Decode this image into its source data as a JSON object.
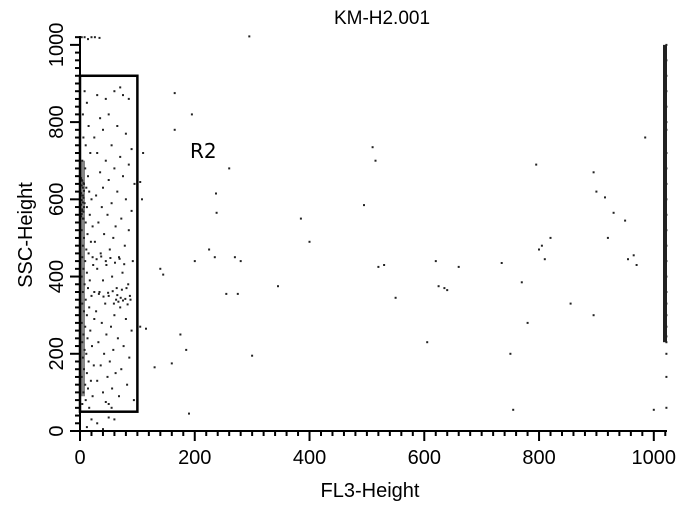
{
  "chart_data": {
    "type": "scatter",
    "title": "KM-H2.001",
    "xlabel": "FL3-Height",
    "ylabel": "SSC-Height",
    "xlim": [
      0,
      1023
    ],
    "ylim": [
      0,
      1023
    ],
    "x_ticks": [
      0,
      200,
      400,
      600,
      800,
      1000
    ],
    "y_ticks": [
      0,
      200,
      400,
      600,
      800,
      1000
    ],
    "grid": false,
    "point_color": "#222222",
    "gate": {
      "label": "R2",
      "x_range": [
        0,
        100
      ],
      "y_range": [
        50,
        920
      ]
    },
    "series": [
      {
        "points": [
          [
            3,
            1020
          ],
          [
            8,
            1020
          ],
          [
            14,
            1015
          ],
          [
            20,
            1020
          ],
          [
            26,
            1020
          ],
          [
            34,
            1018
          ],
          [
            295,
            1022
          ],
          [
            165,
            875
          ],
          [
            195,
            820
          ],
          [
            165,
            780
          ],
          [
            260,
            680
          ],
          [
            237,
            615
          ],
          [
            238,
            565
          ],
          [
            510,
            735
          ],
          [
            515,
            700
          ],
          [
            385,
            550
          ],
          [
            400,
            490
          ],
          [
            495,
            585
          ],
          [
            225,
            470
          ],
          [
            235,
            450
          ],
          [
            200,
            440
          ],
          [
            270,
            450
          ],
          [
            280,
            440
          ],
          [
            255,
            355
          ],
          [
            275,
            355
          ],
          [
            345,
            375
          ],
          [
            140,
            420
          ],
          [
            145,
            405
          ],
          [
            105,
            270
          ],
          [
            115,
            265
          ],
          [
            130,
            165
          ],
          [
            160,
            175
          ],
          [
            175,
            250
          ],
          [
            185,
            210
          ],
          [
            300,
            195
          ],
          [
            190,
            45
          ],
          [
            520,
            425
          ],
          [
            530,
            430
          ],
          [
            550,
            345
          ],
          [
            605,
            230
          ],
          [
            620,
            440
          ],
          [
            625,
            375
          ],
          [
            635,
            370
          ],
          [
            640,
            365
          ],
          [
            660,
            425
          ],
          [
            735,
            435
          ],
          [
            750,
            200
          ],
          [
            755,
            55
          ],
          [
            770,
            385
          ],
          [
            780,
            280
          ],
          [
            795,
            690
          ],
          [
            800,
            470
          ],
          [
            805,
            480
          ],
          [
            810,
            445
          ],
          [
            820,
            500
          ],
          [
            855,
            330
          ],
          [
            895,
            300
          ],
          [
            895,
            670
          ],
          [
            900,
            620
          ],
          [
            915,
            605
          ],
          [
            920,
            500
          ],
          [
            930,
            565
          ],
          [
            950,
            545
          ],
          [
            955,
            445
          ],
          [
            965,
            455
          ],
          [
            970,
            430
          ],
          [
            985,
            760
          ],
          [
            1000,
            55
          ],
          [
            110,
            720
          ],
          [
            105,
            645
          ],
          [
            108,
            600
          ],
          [
            12,
            10
          ],
          [
            20,
            30
          ],
          [
            30,
            20
          ],
          [
            40,
            5
          ],
          [
            50,
            35
          ],
          [
            60,
            30
          ],
          [
            45,
            75
          ],
          [
            55,
            60
          ],
          [
            4,
            920
          ],
          [
            8,
            880
          ],
          [
            12,
            850
          ],
          [
            5,
            820
          ],
          [
            15,
            790
          ],
          [
            6,
            760
          ],
          [
            10,
            740
          ],
          [
            18,
            720
          ],
          [
            4,
            700
          ],
          [
            9,
            680
          ],
          [
            14,
            660
          ],
          [
            3,
            650
          ],
          [
            7,
            640
          ],
          [
            11,
            630
          ],
          [
            16,
            620
          ],
          [
            5,
            610
          ],
          [
            20,
            600
          ],
          [
            8,
            590
          ],
          [
            12,
            580
          ],
          [
            4,
            570
          ],
          [
            17,
            560
          ],
          [
            6,
            550
          ],
          [
            10,
            540
          ],
          [
            22,
            530
          ],
          [
            3,
            520
          ],
          [
            13,
            510
          ],
          [
            7,
            500
          ],
          [
            19,
            490
          ],
          [
            5,
            480
          ],
          [
            11,
            470
          ],
          [
            15,
            460
          ],
          [
            4,
            450
          ],
          [
            9,
            440
          ],
          [
            23,
            430
          ],
          [
            6,
            420
          ],
          [
            12,
            410
          ],
          [
            3,
            400
          ],
          [
            17,
            390
          ],
          [
            8,
            380
          ],
          [
            14,
            370
          ],
          [
            5,
            360
          ],
          [
            20,
            350
          ],
          [
            10,
            340
          ],
          [
            4,
            330
          ],
          [
            16,
            320
          ],
          [
            7,
            310
          ],
          [
            12,
            300
          ],
          [
            25,
            290
          ],
          [
            3,
            280
          ],
          [
            9,
            270
          ],
          [
            18,
            260
          ],
          [
            6,
            250
          ],
          [
            13,
            240
          ],
          [
            4,
            230
          ],
          [
            21,
            220
          ],
          [
            8,
            210
          ],
          [
            11,
            200
          ],
          [
            5,
            190
          ],
          [
            15,
            180
          ],
          [
            24,
            170
          ],
          [
            7,
            160
          ],
          [
            12,
            150
          ],
          [
            3,
            140
          ],
          [
            19,
            130
          ],
          [
            9,
            120
          ],
          [
            14,
            110
          ],
          [
            6,
            100
          ],
          [
            22,
            90
          ],
          [
            10,
            80
          ],
          [
            4,
            70
          ],
          [
            16,
            60
          ],
          [
            2,
            655
          ],
          [
            4,
            648
          ],
          [
            6,
            642
          ],
          [
            3,
            636
          ],
          [
            5,
            630
          ],
          [
            7,
            622
          ],
          [
            2,
            616
          ],
          [
            4,
            610
          ],
          [
            6,
            604
          ],
          [
            3,
            598
          ],
          [
            5,
            592
          ],
          [
            2,
            586
          ],
          [
            7,
            580
          ],
          [
            4,
            574
          ],
          [
            6,
            568
          ],
          [
            3,
            562
          ],
          [
            2,
            556
          ],
          [
            5,
            550
          ],
          [
            30,
            870
          ],
          [
            60,
            880
          ],
          [
            70,
            890
          ],
          [
            75,
            870
          ],
          [
            45,
            860
          ],
          [
            85,
            860
          ],
          [
            50,
            820
          ],
          [
            35,
            810
          ],
          [
            40,
            780
          ],
          [
            65,
            790
          ],
          [
            80,
            770
          ],
          [
            25,
            760
          ],
          [
            55,
            740
          ],
          [
            90,
            730
          ],
          [
            30,
            720
          ],
          [
            70,
            710
          ],
          [
            45,
            700
          ],
          [
            85,
            690
          ],
          [
            60,
            680
          ],
          [
            35,
            670
          ],
          [
            75,
            660
          ],
          [
            50,
            650
          ],
          [
            95,
            640
          ],
          [
            40,
            630
          ],
          [
            65,
            620
          ],
          [
            28,
            610
          ],
          [
            80,
            600
          ],
          [
            55,
            590
          ],
          [
            38,
            580
          ],
          [
            90,
            570
          ],
          [
            48,
            560
          ],
          [
            72,
            550
          ],
          [
            32,
            540
          ],
          [
            62,
            530
          ],
          [
            85,
            520
          ],
          [
            42,
            510
          ],
          [
            58,
            500
          ],
          [
            26,
            490
          ],
          [
            78,
            480
          ],
          [
            52,
            470
          ],
          [
            36,
            460
          ],
          [
            68,
            450
          ],
          [
            92,
            440
          ],
          [
            46,
            430
          ],
          [
            30,
            420
          ],
          [
            74,
            410
          ],
          [
            56,
            400
          ],
          [
            40,
            390
          ],
          [
            84,
            380
          ],
          [
            64,
            370
          ],
          [
            34,
            360
          ],
          [
            50,
            350
          ],
          [
            88,
            340
          ],
          [
            44,
            330
          ],
          [
            70,
            320
          ],
          [
            28,
            310
          ],
          [
            60,
            300
          ],
          [
            80,
            290
          ],
          [
            38,
            280
          ],
          [
            54,
            270
          ],
          [
            90,
            260
          ],
          [
            46,
            250
          ],
          [
            66,
            240
          ],
          [
            32,
            230
          ],
          [
            76,
            220
          ],
          [
            58,
            210
          ],
          [
            42,
            200
          ],
          [
            86,
            190
          ],
          [
            52,
            180
          ],
          [
            36,
            170
          ],
          [
            72,
            160
          ],
          [
            62,
            150
          ],
          [
            48,
            140
          ],
          [
            30,
            130
          ],
          [
            82,
            120
          ],
          [
            56,
            110
          ],
          [
            40,
            100
          ],
          [
            68,
            90
          ],
          [
            94,
            80
          ],
          [
            50,
            70
          ],
          [
            63,
            340
          ],
          [
            67,
            335
          ],
          [
            71,
            345
          ],
          [
            59,
            330
          ],
          [
            75,
            338
          ],
          [
            79,
            342
          ],
          [
            83,
            328
          ],
          [
            87,
            350
          ],
          [
            25,
            360
          ],
          [
            33,
            355
          ],
          [
            41,
            348
          ],
          [
            49,
            358
          ],
          [
            57,
            362
          ],
          [
            65,
            352
          ],
          [
            73,
            366
          ],
          [
            81,
            370
          ],
          [
            22,
            450
          ],
          [
            29,
            445
          ],
          [
            37,
            452
          ],
          [
            45,
            440
          ],
          [
            53,
            448
          ],
          [
            61,
            436
          ],
          [
            69,
            446
          ],
          [
            77,
            432
          ],
          [
            1022,
            60
          ],
          [
            1022,
            140
          ],
          [
            1022,
            200
          ],
          [
            1022,
            230
          ],
          [
            1022,
            245
          ],
          [
            1022,
            270
          ],
          [
            1022,
            780
          ],
          [
            1022,
            300
          ],
          [
            1022,
            330
          ],
          [
            1022,
            360
          ],
          [
            1022,
            400
          ],
          [
            1022,
            440
          ],
          [
            1022,
            480
          ],
          [
            1022,
            520
          ],
          [
            1022,
            560
          ],
          [
            1022,
            600
          ],
          [
            1022,
            640
          ],
          [
            1022,
            680
          ],
          [
            1022,
            720
          ],
          [
            1022,
            800
          ],
          [
            1022,
            840
          ],
          [
            1022,
            880
          ],
          [
            1022,
            920
          ],
          [
            1022,
            960
          ],
          [
            1022,
            1000
          ]
        ]
      }
    ]
  }
}
